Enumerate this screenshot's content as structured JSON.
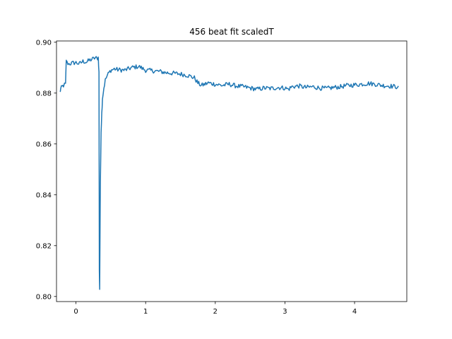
{
  "chart_data": {
    "type": "line",
    "title": "456 beat fit scaledT",
    "xlabel": "",
    "ylabel": "",
    "xlim": [
      -0.28,
      4.75
    ],
    "ylim": [
      0.798,
      0.9005
    ],
    "xticks": [
      0,
      1,
      2,
      3,
      4
    ],
    "xtick_labels": [
      "0",
      "1",
      "2",
      "3",
      "4"
    ],
    "yticks": [
      0.8,
      0.82,
      0.84,
      0.86,
      0.88,
      0.9
    ],
    "ytick_labels": [
      "0.80",
      "0.82",
      "0.84",
      "0.86",
      "0.88",
      "0.90"
    ],
    "grid": false,
    "series": [
      {
        "color": "#1f77b4",
        "x": [
          -0.23,
          -0.22,
          -0.2,
          -0.18,
          -0.15,
          -0.14,
          -0.13,
          -0.1,
          -0.05,
          0.0,
          0.05,
          0.1,
          0.15,
          0.2,
          0.25,
          0.28,
          0.3,
          0.32,
          0.33,
          0.335,
          0.34,
          0.345,
          0.35,
          0.36,
          0.37,
          0.38,
          0.4,
          0.42,
          0.45,
          0.5,
          0.55,
          0.6,
          0.7,
          0.8,
          0.9,
          1.0,
          1.1,
          1.2,
          1.3,
          1.4,
          1.5,
          1.6,
          1.7,
          1.75,
          1.8,
          1.9,
          2.0,
          2.1,
          2.2,
          2.3,
          2.4,
          2.5,
          2.6,
          2.7,
          2.8,
          2.9,
          3.0,
          3.05,
          3.1,
          3.2,
          3.3,
          3.4,
          3.5,
          3.6,
          3.7,
          3.8,
          3.9,
          4.0,
          4.1,
          4.2,
          4.3,
          4.4,
          4.5,
          4.6,
          4.63
        ],
        "y": [
          0.8805,
          0.8815,
          0.8825,
          0.883,
          0.8835,
          0.8925,
          0.892,
          0.8915,
          0.8918,
          0.892,
          0.8915,
          0.8925,
          0.8922,
          0.893,
          0.8935,
          0.894,
          0.8935,
          0.894,
          0.888,
          0.81,
          0.803,
          0.825,
          0.845,
          0.865,
          0.872,
          0.878,
          0.882,
          0.885,
          0.887,
          0.889,
          0.8895,
          0.8892,
          0.889,
          0.89,
          0.8905,
          0.889,
          0.8888,
          0.8885,
          0.888,
          0.8878,
          0.8875,
          0.887,
          0.886,
          0.884,
          0.883,
          0.884,
          0.8835,
          0.883,
          0.8835,
          0.8828,
          0.8825,
          0.882,
          0.8815,
          0.882,
          0.8818,
          0.8822,
          0.882,
          0.8815,
          0.8825,
          0.8828,
          0.8822,
          0.8825,
          0.882,
          0.8818,
          0.8822,
          0.8825,
          0.883,
          0.8832,
          0.8835,
          0.8838,
          0.8835,
          0.883,
          0.8828,
          0.8825,
          0.8828
        ]
      }
    ]
  }
}
